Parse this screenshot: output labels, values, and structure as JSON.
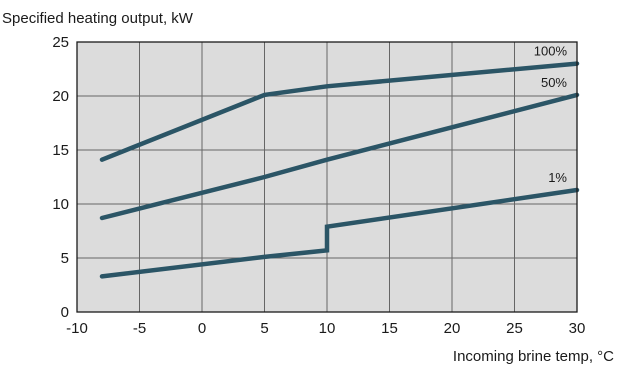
{
  "chart_data": {
    "type": "line",
    "title": "",
    "ylabel": "Specified heating output, kW",
    "xlabel": "Incoming brine temp, °C",
    "xlim": [
      -10,
      30
    ],
    "ylim": [
      0,
      25
    ],
    "x_ticks": [
      -10,
      -5,
      0,
      5,
      10,
      15,
      20,
      25,
      30
    ],
    "y_ticks": [
      0,
      5,
      10,
      15,
      20,
      25
    ],
    "grid": true,
    "plot_background": "#dcdcdc",
    "line_color": "#2b5566",
    "series": [
      {
        "name": "100%",
        "points": [
          [
            -8,
            14.1
          ],
          [
            5,
            20.1
          ],
          [
            10,
            20.9
          ],
          [
            30,
            23.0
          ]
        ]
      },
      {
        "name": "50%",
        "points": [
          [
            -8,
            8.7
          ],
          [
            5,
            12.5
          ],
          [
            10,
            14.1
          ],
          [
            30,
            20.1
          ]
        ]
      },
      {
        "name": "1%",
        "points": [
          [
            -8,
            3.3
          ],
          [
            5,
            5.1
          ],
          [
            10,
            5.7
          ],
          [
            10,
            7.9
          ],
          [
            30,
            11.3
          ]
        ]
      }
    ]
  }
}
